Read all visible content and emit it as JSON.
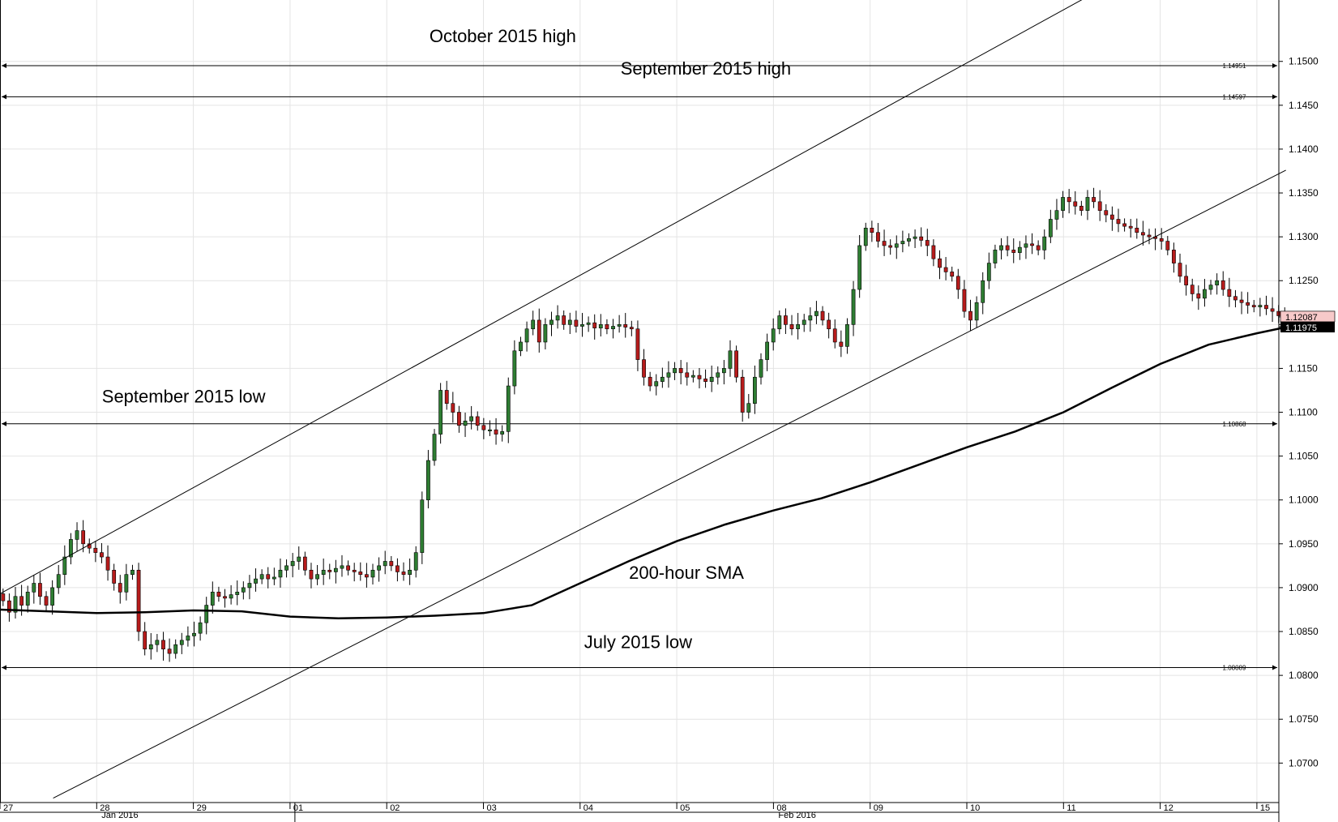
{
  "chart_data": {
    "type": "candlestick",
    "instrument": "",
    "ylim": [
      1.0655,
      1.157
    ],
    "y_ticks": [
      "1.0700",
      "1.0750",
      "1.0800",
      "1.0850",
      "1.0900",
      "1.0950",
      "1.1000",
      "1.1050",
      "1.1100",
      "1.1150",
      "1.1200",
      "1.1250",
      "1.1300",
      "1.1350",
      "1.1400",
      "1.1450",
      "1.1500"
    ],
    "sessions": [
      {
        "label": "27",
        "date": "2016-01-27"
      },
      {
        "label": "28",
        "date": "2016-01-28"
      },
      {
        "label": "29",
        "date": "2016-01-29"
      },
      {
        "label": "01",
        "date": "2016-02-01"
      },
      {
        "label": "02",
        "date": "2016-02-02"
      },
      {
        "label": "03",
        "date": "2016-02-03"
      },
      {
        "label": "04",
        "date": "2016-02-04"
      },
      {
        "label": "05",
        "date": "2016-02-05"
      },
      {
        "label": "08",
        "date": "2016-02-08"
      },
      {
        "label": "09",
        "date": "2016-02-09"
      },
      {
        "label": "10",
        "date": "2016-02-10"
      },
      {
        "label": "11",
        "date": "2016-02-11"
      },
      {
        "label": "12",
        "date": "2016-02-12"
      },
      {
        "label": "15",
        "date": "2016-02-15"
      }
    ],
    "month_labels": [
      {
        "label": "Jan 2016",
        "session": 1
      },
      {
        "label": "Feb 2016",
        "session": 8
      }
    ],
    "levels": [
      {
        "name": "October 2015 high",
        "value": 1.14951,
        "tag": "1.14951"
      },
      {
        "name": "September 2015 high",
        "value": 1.14597,
        "tag": "1.14597"
      },
      {
        "name": "September 2015 low",
        "value": 1.10868,
        "tag": "1.10868"
      },
      {
        "name": "July 2015 low",
        "value": 1.08089,
        "tag": "1.08089"
      }
    ],
    "annotations": [
      {
        "text": "October 2015 high",
        "x": 5.2,
        "y": 1.1522
      },
      {
        "text": "September 2015 high",
        "x": 7.3,
        "y": 1.1485
      },
      {
        "text": "September 2015 low",
        "x": 1.9,
        "y": 1.1111
      },
      {
        "text": "July 2015 low",
        "x": 6.6,
        "y": 1.0831
      },
      {
        "text": "200-hour SMA",
        "x": 7.1,
        "y": 1.091
      }
    ],
    "trend_lines": [
      {
        "from": [
          0.0,
          1.0893
        ],
        "to": [
          11.35,
          1.158
        ]
      },
      {
        "from": [
          0.55,
          1.066
        ],
        "to": [
          13.3,
          1.1376
        ]
      }
    ],
    "sma_200": [
      [
        0.0,
        1.0875
      ],
      [
        0.5,
        1.0873
      ],
      [
        1.0,
        1.0871
      ],
      [
        1.5,
        1.0872
      ],
      [
        2.0,
        1.0874
      ],
      [
        2.5,
        1.0873
      ],
      [
        3.0,
        1.0867
      ],
      [
        3.5,
        1.0865
      ],
      [
        4.0,
        1.0866
      ],
      [
        4.5,
        1.0868
      ],
      [
        5.0,
        1.0871
      ],
      [
        5.5,
        1.088
      ],
      [
        6.0,
        1.0905
      ],
      [
        6.5,
        1.093
      ],
      [
        7.0,
        1.0953
      ],
      [
        7.5,
        1.0972
      ],
      [
        8.0,
        1.0988
      ],
      [
        8.5,
        1.1002
      ],
      [
        9.0,
        1.102
      ],
      [
        9.5,
        1.104
      ],
      [
        10.0,
        1.106
      ],
      [
        10.5,
        1.1078
      ],
      [
        11.0,
        1.11
      ],
      [
        11.5,
        1.1128
      ],
      [
        12.0,
        1.1155
      ],
      [
        12.5,
        1.1177
      ],
      [
        13.0,
        1.119
      ],
      [
        13.3,
        1.1197
      ]
    ],
    "last_price": "1.12087",
    "sma_last": "1.11975",
    "closes": [
      1.0885,
      1.0872,
      1.089,
      1.088,
      1.0895,
      1.0905,
      1.089,
      1.088,
      1.09,
      1.0915,
      1.0935,
      1.0955,
      1.0965,
      1.095,
      1.0945,
      1.094,
      1.0935,
      1.092,
      1.0905,
      1.0895,
      1.0915,
      1.092,
      1.085,
      1.083,
      1.0835,
      1.084,
      1.083,
      1.0825,
      1.0835,
      1.084,
      1.0845,
      1.0848,
      1.086,
      1.088,
      1.0895,
      1.089,
      1.0888,
      1.0892,
      1.0895,
      1.09,
      1.0905,
      1.091,
      1.0915,
      1.091,
      1.0912,
      1.092,
      1.0925,
      1.093,
      1.0935,
      1.092,
      1.091,
      1.0915,
      1.092,
      1.0918,
      1.0922,
      1.0925,
      1.092,
      1.0918,
      1.0915,
      1.0912,
      1.092,
      1.0925,
      1.093,
      1.0925,
      1.0918,
      1.0915,
      1.092,
      1.094,
      1.1,
      1.1045,
      1.1075,
      1.1125,
      1.111,
      1.11,
      1.1085,
      1.109,
      1.1095,
      1.1085,
      1.108,
      1.108,
      1.1075,
      1.1078,
      1.113,
      1.117,
      1.118,
      1.1195,
      1.1205,
      1.118,
      1.12,
      1.1205,
      1.121,
      1.12,
      1.1205,
      1.1198,
      1.12,
      1.1202,
      1.1196,
      1.12,
      1.1195,
      1.1198,
      1.12,
      1.1197,
      1.1195,
      1.116,
      1.114,
      1.113,
      1.1135,
      1.114,
      1.1145,
      1.115,
      1.1145,
      1.114,
      1.1142,
      1.1138,
      1.1135,
      1.114,
      1.1145,
      1.115,
      1.117,
      1.114,
      1.11,
      1.111,
      1.114,
      1.116,
      1.118,
      1.1195,
      1.121,
      1.12,
      1.1195,
      1.12,
      1.1205,
      1.121,
      1.1215,
      1.1205,
      1.1195,
      1.118,
      1.1175,
      1.12,
      1.124,
      1.129,
      1.131,
      1.1305,
      1.1295,
      1.129,
      1.1288,
      1.1292,
      1.1295,
      1.1298,
      1.13,
      1.1296,
      1.129,
      1.1275,
      1.1265,
      1.126,
      1.1255,
      1.124,
      1.1215,
      1.1205,
      1.1225,
      1.125,
      1.127,
      1.1285,
      1.129,
      1.1285,
      1.1282,
      1.1288,
      1.1292,
      1.129,
      1.1285,
      1.13,
      1.132,
      1.133,
      1.1345,
      1.134,
      1.1335,
      1.133,
      1.1345,
      1.134,
      1.133,
      1.1325,
      1.132,
      1.1315,
      1.1312,
      1.131,
      1.1305,
      1.1302,
      1.13,
      1.1298,
      1.1295,
      1.1285,
      1.127,
      1.1255,
      1.1245,
      1.1235,
      1.123,
      1.124,
      1.1245,
      1.125,
      1.124,
      1.1232,
      1.1228,
      1.1225,
      1.1222,
      1.122,
      1.1222,
      1.1218,
      1.1215,
      1.121,
      1.1209
    ]
  }
}
